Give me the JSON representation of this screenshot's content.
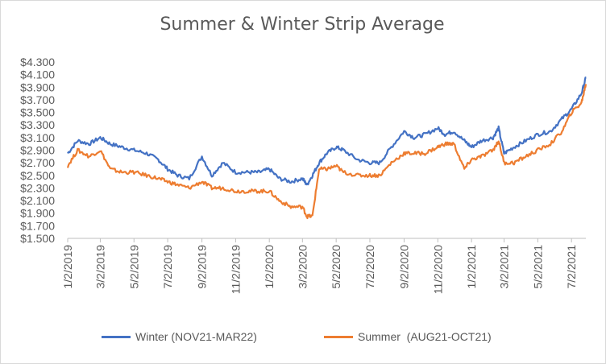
{
  "chart_data": {
    "type": "line",
    "title": "Summer & Winter Strip Average",
    "xlabel": "",
    "ylabel": "",
    "ylim": [
      1.5,
      4.3
    ],
    "y_ticks": [
      "$4.300",
      "$4.100",
      "$3.900",
      "$3.700",
      "$3.500",
      "$3.300",
      "$3.100",
      "$2.900",
      "$2.700",
      "$2.500",
      "$2.300",
      "$2.100",
      "$1.900",
      "$1.700",
      "$1.500"
    ],
    "x_ticks": [
      "1/2/2019",
      "3/2/2019",
      "5/2/2019",
      "7/2/2019",
      "9/2/2019",
      "11/2/2019",
      "1/2/2020",
      "3/2/2020",
      "5/2/2020",
      "7/2/2020",
      "9/2/2020",
      "11/2/2020",
      "1/2/2021",
      "3/2/2021",
      "5/2/2021",
      "7/2/2021"
    ],
    "grid": false,
    "legend_position": "bottom",
    "colors": {
      "Winter (NOV21-MAR22)": "#4472c4",
      "Summer  (AUG21-OCT21)": "#ed7d31"
    },
    "series": [
      {
        "name": "Winter (NOV21-MAR22)",
        "x": [
          "2019-01-02",
          "2019-01-20",
          "2019-02-10",
          "2019-03-02",
          "2019-03-20",
          "2019-04-10",
          "2019-05-02",
          "2019-05-25",
          "2019-06-15",
          "2019-07-02",
          "2019-07-20",
          "2019-08-10",
          "2019-09-02",
          "2019-09-20",
          "2019-10-10",
          "2019-11-02",
          "2019-11-25",
          "2019-12-15",
          "2020-01-02",
          "2020-01-20",
          "2020-02-10",
          "2020-03-02",
          "2020-03-10",
          "2020-03-20",
          "2020-04-01",
          "2020-04-15",
          "2020-05-02",
          "2020-05-15",
          "2020-06-10",
          "2020-07-02",
          "2020-07-20",
          "2020-08-10",
          "2020-09-02",
          "2020-09-20",
          "2020-10-10",
          "2020-11-02",
          "2020-11-15",
          "2020-12-01",
          "2020-12-20",
          "2021-01-02",
          "2021-01-20",
          "2021-02-10",
          "2021-02-20",
          "2021-03-02",
          "2021-03-20",
          "2021-04-10",
          "2021-05-02",
          "2021-05-25",
          "2021-06-15",
          "2021-07-02",
          "2021-07-20",
          "2021-07-28"
        ],
        "y": [
          2.85,
          3.05,
          3.0,
          3.1,
          3.0,
          2.95,
          2.9,
          2.85,
          2.75,
          2.6,
          2.5,
          2.45,
          2.8,
          2.5,
          2.7,
          2.55,
          2.55,
          2.55,
          2.6,
          2.45,
          2.4,
          2.45,
          2.35,
          2.5,
          2.7,
          2.85,
          2.95,
          2.9,
          2.75,
          2.7,
          2.7,
          2.95,
          3.2,
          3.1,
          3.15,
          3.25,
          3.15,
          3.2,
          3.05,
          2.95,
          3.05,
          3.1,
          3.25,
          2.85,
          2.95,
          3.05,
          3.15,
          3.2,
          3.4,
          3.55,
          3.8,
          4.05
        ]
      },
      {
        "name": "Summer  (AUG21-OCT21)",
        "x": [
          "2019-01-02",
          "2019-01-20",
          "2019-02-10",
          "2019-03-02",
          "2019-03-20",
          "2019-04-10",
          "2019-05-02",
          "2019-05-25",
          "2019-06-15",
          "2019-07-02",
          "2019-07-20",
          "2019-08-10",
          "2019-09-02",
          "2019-09-20",
          "2019-10-10",
          "2019-11-02",
          "2019-11-25",
          "2019-12-15",
          "2020-01-02",
          "2020-01-20",
          "2020-02-10",
          "2020-03-02",
          "2020-03-10",
          "2020-03-20",
          "2020-04-01",
          "2020-04-15",
          "2020-05-02",
          "2020-05-15",
          "2020-06-10",
          "2020-07-02",
          "2020-07-20",
          "2020-08-10",
          "2020-09-02",
          "2020-09-20",
          "2020-10-10",
          "2020-11-02",
          "2020-11-15",
          "2020-12-01",
          "2020-12-20",
          "2021-01-02",
          "2021-01-20",
          "2021-02-10",
          "2021-02-20",
          "2021-03-02",
          "2021-03-20",
          "2021-04-10",
          "2021-05-02",
          "2021-05-25",
          "2021-06-15",
          "2021-07-02",
          "2021-07-20",
          "2021-07-28"
        ],
        "y": [
          2.65,
          2.9,
          2.8,
          2.9,
          2.6,
          2.55,
          2.55,
          2.5,
          2.45,
          2.4,
          2.35,
          2.3,
          2.4,
          2.3,
          2.3,
          2.25,
          2.25,
          2.25,
          2.25,
          2.1,
          2.0,
          2.0,
          1.85,
          1.85,
          2.6,
          2.6,
          2.65,
          2.55,
          2.5,
          2.5,
          2.5,
          2.7,
          2.85,
          2.85,
          2.85,
          2.95,
          3.0,
          3.0,
          2.6,
          2.75,
          2.8,
          2.9,
          3.05,
          2.7,
          2.7,
          2.8,
          2.9,
          3.0,
          3.2,
          3.5,
          3.65,
          3.95
        ]
      }
    ]
  }
}
